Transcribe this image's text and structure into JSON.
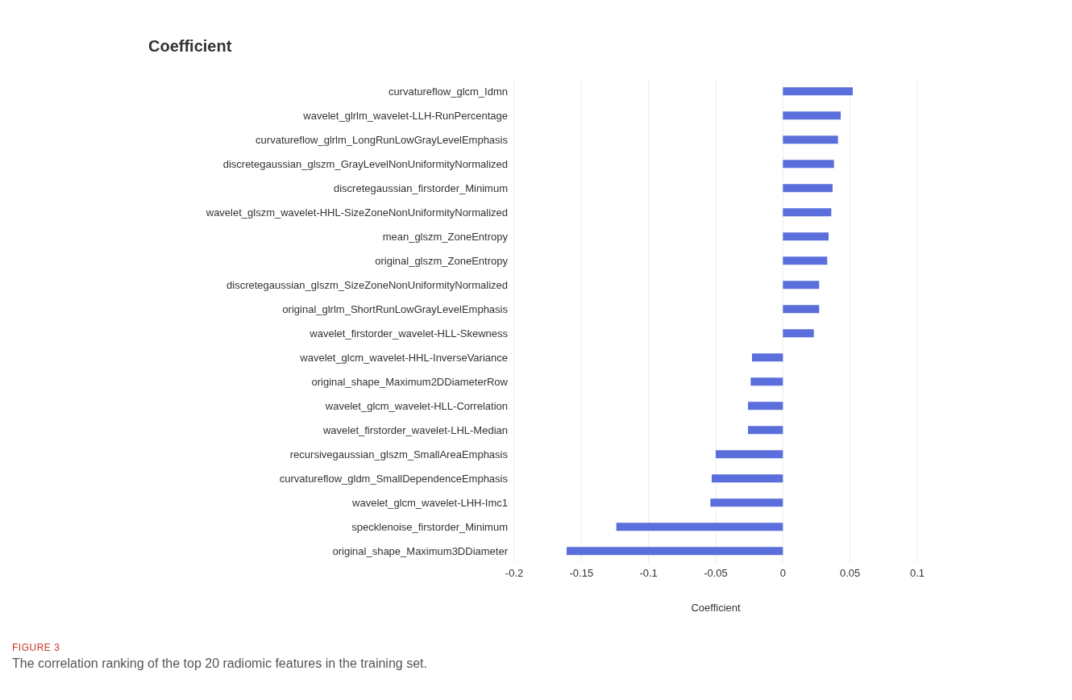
{
  "chart_data": {
    "type": "bar",
    "orientation": "horizontal",
    "title": "Coefficient",
    "xlabel": "Coefficient",
    "categories": [
      "curvatureflow_glcm_Idmn",
      "wavelet_glrlm_wavelet-LLH-RunPercentage",
      "curvatureflow_glrlm_LongRunLowGrayLevelEmphasis",
      "discretegaussian_glszm_GrayLevelNonUniformityNormalized",
      "discretegaussian_firstorder_Minimum",
      "wavelet_glszm_wavelet-HHL-SizeZoneNonUniformityNormalized",
      "mean_glszm_ZoneEntropy",
      "original_glszm_ZoneEntropy",
      "discretegaussian_glszm_SizeZoneNonUniformityNormalized",
      "original_glrlm_ShortRunLowGrayLevelEmphasis",
      "wavelet_firstorder_wavelet-HLL-Skewness",
      "wavelet_glcm_wavelet-HHL-InverseVariance",
      "original_shape_Maximum2DDiameterRow",
      "wavelet_glcm_wavelet-HLL-Correlation",
      "wavelet_firstorder_wavelet-LHL-Median",
      "recursivegaussian_glszm_SmallAreaEmphasis",
      "curvatureflow_gldm_SmallDependenceEmphasis",
      "wavelet_glcm_wavelet-LHH-Imc1",
      "specklenoise_firstorder_Minimum",
      "original_shape_Maximum3DDiameter"
    ],
    "values": [
      0.052,
      0.043,
      0.041,
      0.038,
      0.037,
      0.036,
      0.034,
      0.033,
      0.027,
      0.027,
      0.023,
      -0.023,
      -0.024,
      -0.026,
      -0.026,
      -0.05,
      -0.053,
      -0.054,
      -0.124,
      -0.161
    ],
    "color": "#5a6fdc",
    "xlim": [
      -0.2,
      0.1
    ],
    "xticks": [
      -0.2,
      -0.15,
      -0.1,
      -0.05,
      0,
      0.05,
      0.1
    ],
    "grid": "x",
    "annotations": [
      "FIGURE 3",
      "The correlation ranking of the top 20 radiomic features in the training set."
    ]
  }
}
